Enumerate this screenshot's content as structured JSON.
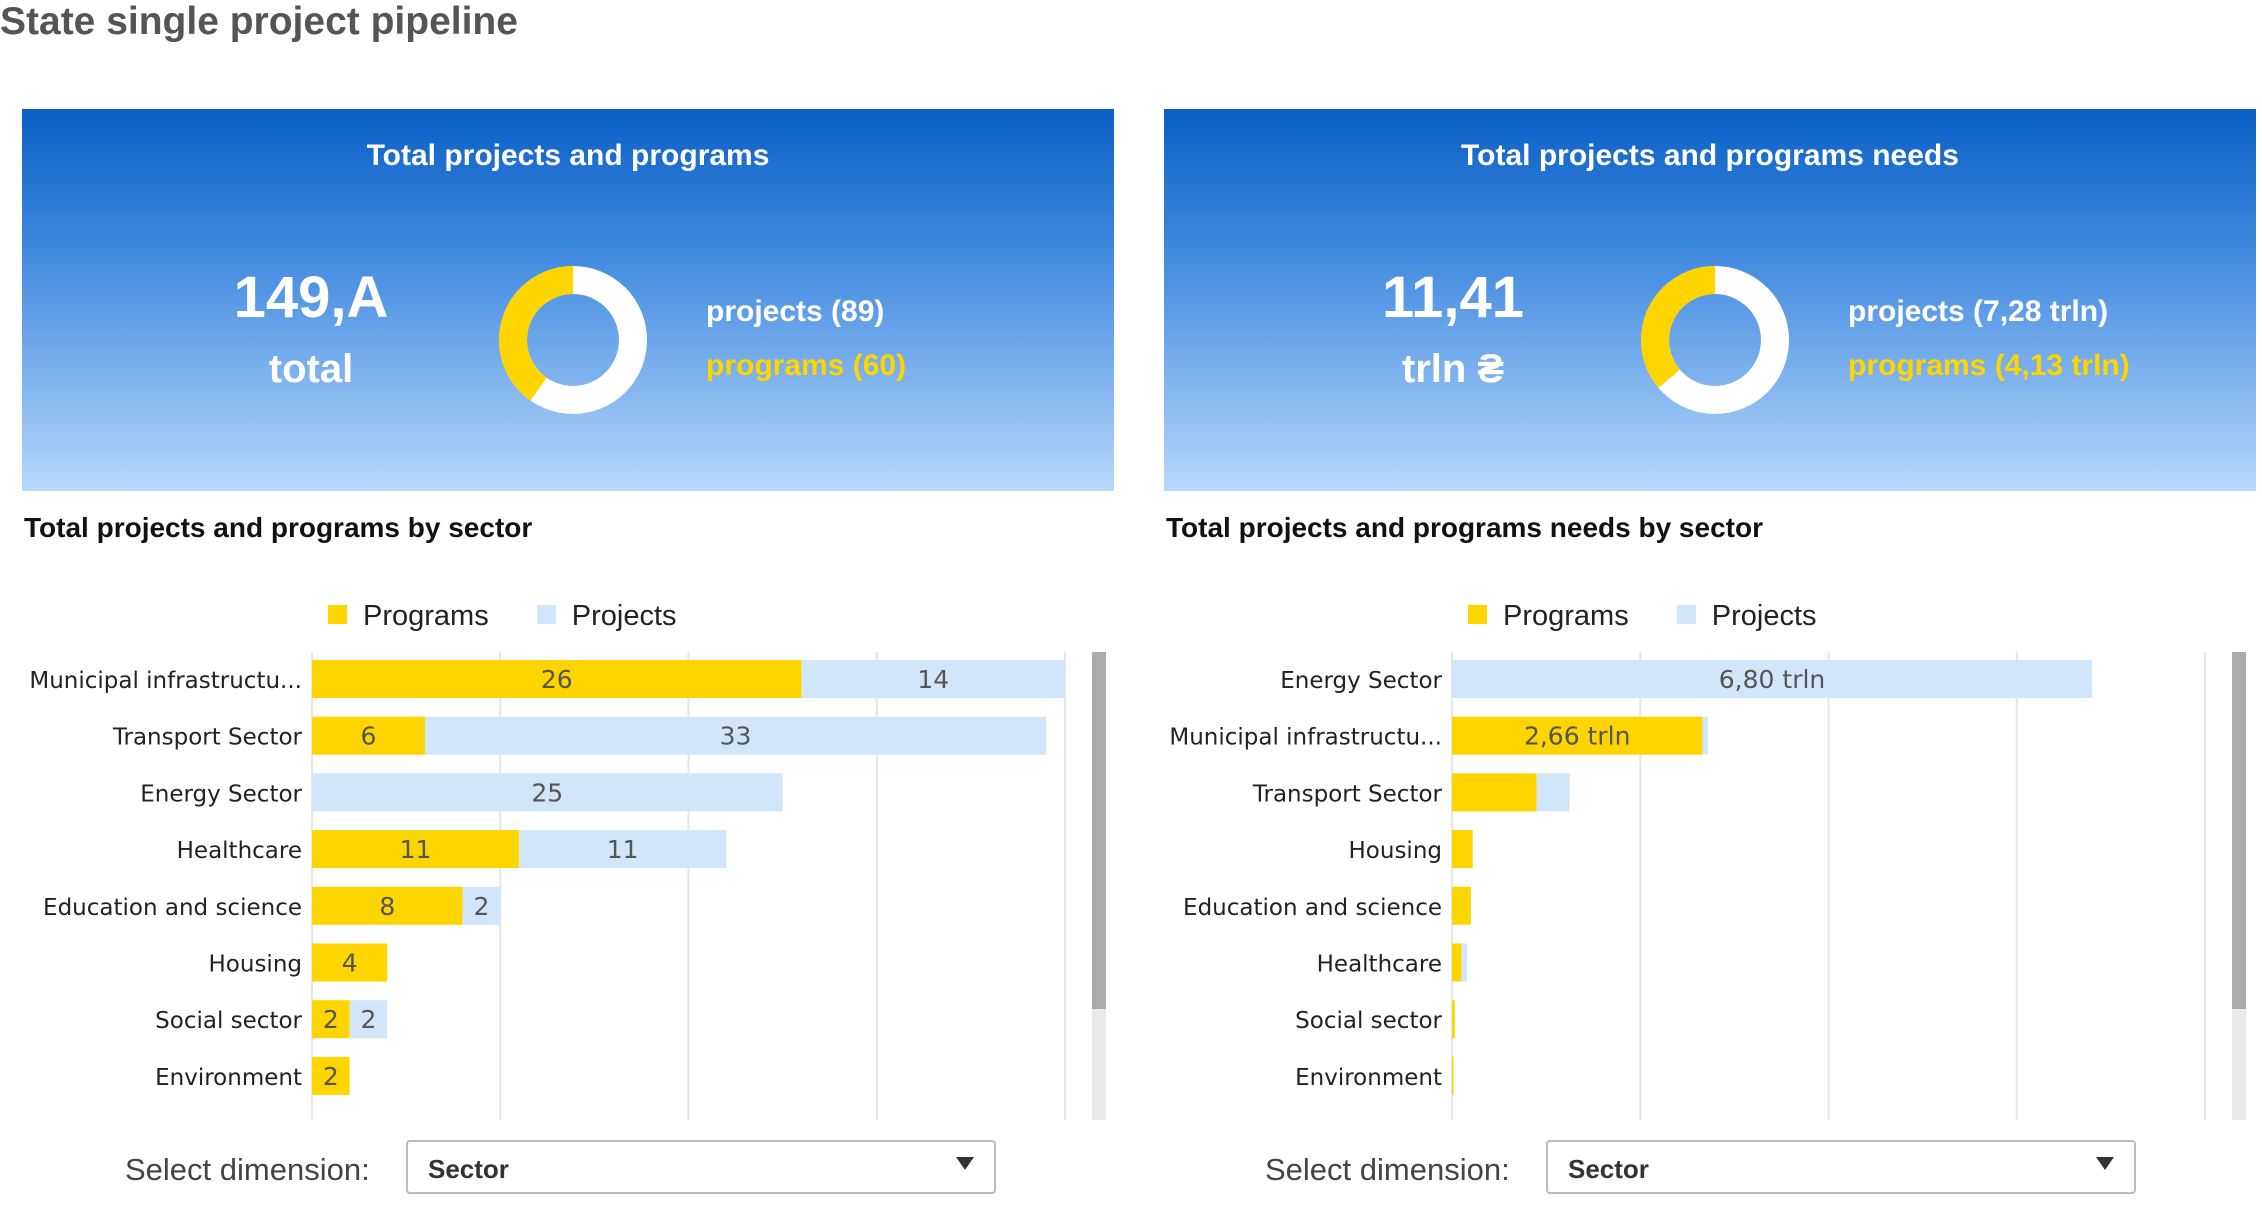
{
  "page": {
    "title": "State single project pipeline"
  },
  "kpi_left": {
    "title": "Total projects and programs",
    "value": "149,A",
    "unit": "total",
    "projects_label": "projects (89)",
    "programs_label": "programs (60)",
    "programs_share": 0.403
  },
  "kpi_right": {
    "title": "Total projects and programs needs",
    "value": "11,41",
    "unit": "trln ₴",
    "projects_label": "projects (7,28 trln)",
    "programs_label": "programs (4,13 trln)",
    "programs_share": 0.362
  },
  "colors": {
    "programs": "#ffd500",
    "projects": "#d2e6fb",
    "kpi_bg_top": "#0a5fc4",
    "kpi_bg_bottom": "#b8d8fb"
  },
  "legend": {
    "programs": "Programs",
    "projects": "Projects"
  },
  "controls": {
    "dimension_label": "Select dimension:",
    "dimension_value": "Sector"
  },
  "chart_data": [
    {
      "type": "bar",
      "orientation": "horizontal",
      "stacked": true,
      "title": "Total projects and programs by sector",
      "categories": [
        "Municipal infrastructu...",
        "Transport Sector",
        "Energy Sector",
        "Healthcare",
        "Education and science",
        "Housing",
        "Social sector",
        "Environment"
      ],
      "series": [
        {
          "name": "Programs",
          "values": [
            26,
            6,
            0,
            11,
            8,
            4,
            2,
            2
          ],
          "labels": [
            "26",
            "6",
            "",
            "11",
            "8",
            "4",
            "2",
            "2"
          ]
        },
        {
          "name": "Projects",
          "values": [
            14,
            33,
            25,
            11,
            2,
            0,
            2,
            0
          ],
          "labels": [
            "14",
            "33",
            "25",
            "11",
            "2",
            "",
            "2",
            ""
          ]
        }
      ],
      "xlim": [
        0,
        40
      ],
      "grid": true,
      "legend_position": "top"
    },
    {
      "type": "bar",
      "orientation": "horizontal",
      "stacked": true,
      "title": "Total projects and programs needs by sector",
      "categories": [
        "Energy Sector",
        "Municipal infrastructu...",
        "Transport Sector",
        "Housing",
        "Education and science",
        "Healthcare",
        "Social sector",
        "Environment"
      ],
      "series": [
        {
          "name": "Programs",
          "values": [
            0,
            2.66,
            0.9,
            0.22,
            0.2,
            0.1,
            0.03,
            0.01
          ],
          "labels": [
            "",
            "2,66 trln",
            "",
            "",
            "",
            "",
            "",
            ""
          ]
        },
        {
          "name": "Projects",
          "values": [
            6.8,
            0.06,
            0.35,
            0,
            0,
            0.06,
            0,
            0
          ],
          "labels": [
            "6,80 trln",
            "",
            "",
            "",
            "",
            "",
            "",
            ""
          ]
        }
      ],
      "xlim": [
        0,
        8
      ],
      "grid": true,
      "legend_position": "top"
    }
  ]
}
